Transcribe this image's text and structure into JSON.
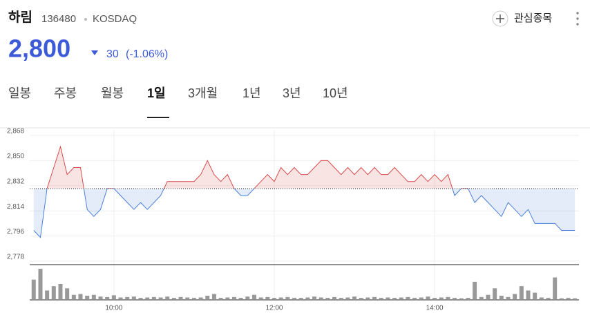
{
  "header": {
    "name": "하림",
    "code": "136480",
    "market": "KOSDAQ",
    "watch": "관심종목",
    "price": "2,800",
    "change": "30",
    "change_pct": "(-1.06%)"
  },
  "tabs": {
    "items": [
      "일봉",
      "주봉",
      "월봉",
      "1일",
      "3개월",
      "1년",
      "3년",
      "10년"
    ],
    "selected": 3
  },
  "chart_data": {
    "type": "line",
    "previous_close": 2830,
    "up_color": "#d84a4a",
    "down_color": "#4a7fdc",
    "volume_color": "#999999",
    "xlim": [
      537,
      948
    ],
    "ylim": [
      2778,
      2868
    ],
    "xticks": [
      {
        "value": 600,
        "label": "10:00"
      },
      {
        "value": 720,
        "label": "12:00"
      },
      {
        "value": 840,
        "label": "14:00"
      }
    ],
    "yticks": [
      {
        "value": 2778,
        "label": "2,778"
      },
      {
        "value": 2796,
        "label": "2,796"
      },
      {
        "value": 2814,
        "label": "2,814"
      },
      {
        "value": 2832,
        "label": "2,832"
      },
      {
        "value": 2850,
        "label": "2,850"
      },
      {
        "value": 2868,
        "label": "2,868"
      }
    ],
    "x": [
      540,
      545,
      550,
      555,
      560,
      565,
      570,
      575,
      580,
      585,
      590,
      595,
      600,
      605,
      610,
      615,
      620,
      625,
      630,
      635,
      640,
      645,
      650,
      655,
      660,
      665,
      670,
      675,
      680,
      685,
      690,
      695,
      700,
      705,
      710,
      715,
      720,
      725,
      730,
      735,
      740,
      745,
      750,
      755,
      760,
      765,
      770,
      775,
      780,
      785,
      790,
      795,
      800,
      805,
      810,
      815,
      820,
      825,
      830,
      835,
      840,
      845,
      850,
      855,
      860,
      865,
      870,
      875,
      880,
      885,
      890,
      895,
      900,
      905,
      910,
      915,
      920,
      925,
      930,
      935,
      940,
      945
    ],
    "values": [
      2800,
      2795,
      2830,
      2845,
      2860,
      2840,
      2845,
      2845,
      2815,
      2810,
      2815,
      2830,
      2830,
      2825,
      2820,
      2815,
      2820,
      2815,
      2820,
      2825,
      2835,
      2835,
      2835,
      2835,
      2835,
      2840,
      2850,
      2840,
      2835,
      2840,
      2830,
      2825,
      2825,
      2830,
      2835,
      2840,
      2835,
      2845,
      2840,
      2845,
      2840,
      2840,
      2845,
      2850,
      2850,
      2845,
      2840,
      2845,
      2840,
      2845,
      2840,
      2845,
      2840,
      2840,
      2845,
      2840,
      2835,
      2835,
      2840,
      2835,
      2840,
      2835,
      2840,
      2825,
      2830,
      2830,
      2820,
      2825,
      2820,
      2815,
      2810,
      2820,
      2815,
      2810,
      2815,
      2805,
      2805,
      2805,
      2805,
      2800,
      2800,
      2800
    ],
    "volume": [
      45,
      70,
      20,
      30,
      35,
      25,
      10,
      12,
      8,
      10,
      6,
      5,
      9,
      4,
      5,
      6,
      3,
      4,
      5,
      4,
      6,
      3,
      5,
      4,
      3,
      4,
      8,
      12,
      3,
      4,
      5,
      3,
      6,
      10,
      4,
      5,
      3,
      4,
      5,
      3,
      3,
      4,
      6,
      4,
      3,
      5,
      3,
      4,
      6,
      3,
      4,
      5,
      3,
      4,
      3,
      4,
      5,
      3,
      4,
      6,
      3,
      4,
      5,
      3,
      2,
      3,
      40,
      5,
      10,
      25,
      8,
      5,
      12,
      30,
      20,
      15,
      4,
      3,
      50,
      2,
      3,
      2
    ]
  }
}
